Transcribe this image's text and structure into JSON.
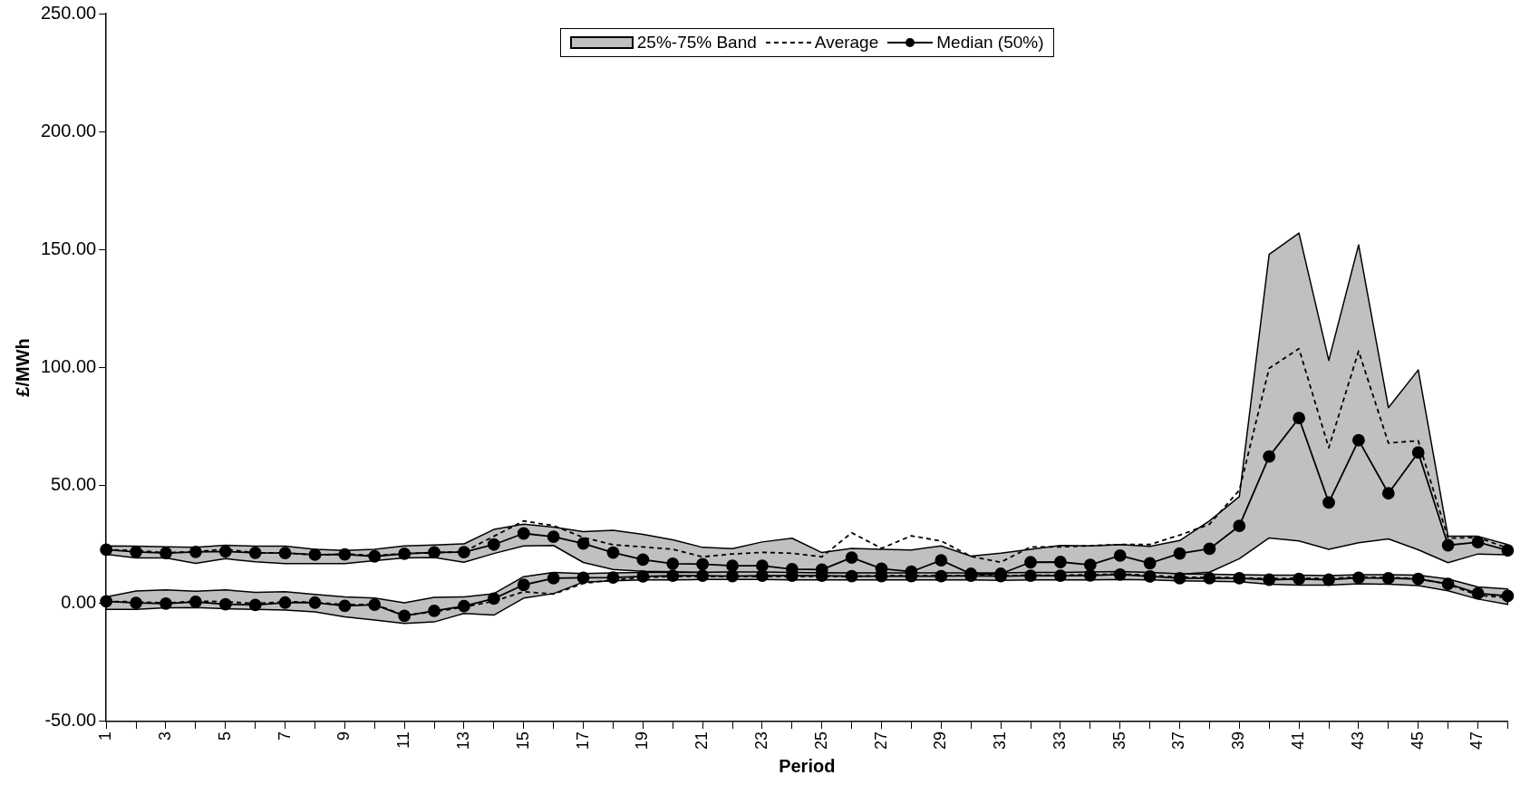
{
  "chart_data": {
    "type": "line",
    "xlabel": "Period",
    "ylabel": "£/MWh",
    "categories": [
      "1",
      null,
      "3",
      null,
      "5",
      null,
      "7",
      null,
      "9",
      null,
      "11",
      null,
      "13",
      null,
      "15",
      null,
      "17",
      null,
      "19",
      null,
      "21",
      null,
      "23",
      null,
      "25",
      null,
      "27",
      null,
      "29",
      null,
      "31",
      null,
      "33",
      null,
      "35",
      null,
      "37",
      null,
      "39",
      null,
      "41",
      null,
      "43",
      null,
      "45",
      null,
      "47",
      null
    ],
    "ylim": [
      -50,
      250
    ],
    "yticks": [
      {
        "value": -50,
        "label": "-50.00"
      },
      {
        "value": 0,
        "label": "0.00"
      },
      {
        "value": 50,
        "label": "50.00"
      },
      {
        "value": 100,
        "label": "100.00"
      },
      {
        "value": 150,
        "label": "150.00"
      },
      {
        "value": 200,
        "label": "200.00"
      },
      {
        "value": 250,
        "label": "250.00"
      }
    ],
    "grid": false,
    "legend": "top",
    "series": [
      {
        "name": "Median (50%)",
        "type": "line",
        "line_style": "solid",
        "marker": "circle",
        "color": "#000000",
        "values": [
          22.8,
          21.9,
          21.4,
          21.9,
          22.1,
          21.5,
          21.4,
          20.7,
          20.8,
          20,
          21.1,
          21.7,
          21.8,
          25,
          29.7,
          28.3,
          25.4,
          21.6,
          18.6,
          16.9,
          16.7,
          16,
          16,
          14.6,
          14.4,
          19.5,
          14.8,
          13.5,
          18.3,
          12.6,
          12.6,
          17.5,
          17.6,
          16.4,
          20.3,
          17.1,
          21.2,
          23.2,
          32.9,
          62.3,
          78.6,
          42.8,
          69.2,
          46.7,
          64,
          24.7,
          26,
          22.5
        ],
        "lower": [
          20.9,
          19.3,
          19.3,
          17,
          19,
          17.7,
          16.9,
          16.9,
          16.9,
          18.2,
          19.3,
          19.5,
          17.5,
          21.2,
          24.4,
          24.6,
          17.4,
          14.4,
          13.7,
          13.5,
          13.2,
          13.2,
          13,
          13,
          13,
          12.8,
          12.8,
          12.6,
          12.6,
          12.3,
          12,
          12.6,
          12.8,
          13,
          13.2,
          12.8,
          12.4,
          13.3,
          19,
          27.8,
          26.5,
          23,
          25.8,
          27.4,
          22.8,
          17.3,
          21,
          20.7
        ],
        "upper": [
          24.4,
          24.3,
          24,
          23.8,
          24.7,
          24.3,
          24.3,
          23,
          22.5,
          23,
          24.4,
          24.8,
          25.3,
          31.4,
          33.6,
          32.4,
          30.5,
          31,
          29.3,
          27,
          23.8,
          23.3,
          26.1,
          27.7,
          21.6,
          23.4,
          23,
          22.7,
          24.4,
          20.1,
          21.3,
          23,
          24.6,
          24.4,
          25,
          24.2,
          26.7,
          35,
          45.3,
          148,
          157,
          103,
          152,
          83,
          99,
          28.5,
          28.5,
          25
        ]
      },
      {
        "name": "Average",
        "type": "line",
        "line_style": "dashed",
        "marker": "none",
        "color": "#000000",
        "values": [
          22.8,
          22.5,
          21.5,
          22,
          23,
          21.5,
          21.5,
          20.5,
          21,
          20.3,
          21.2,
          21.5,
          22,
          28.5,
          35,
          33,
          28,
          24.9,
          24,
          23,
          19.8,
          21,
          21.7,
          21.3,
          19.8,
          30,
          23.4,
          28.7,
          26.5,
          20,
          17.5,
          24,
          24,
          24.5,
          25,
          25,
          29,
          33.6,
          48,
          99.7,
          108,
          66,
          107,
          68,
          69,
          27.7,
          28,
          23.5
        ]
      },
      {
        "type": "line",
        "line_style": "solid",
        "marker": "circle",
        "color": "#000000",
        "values": [
          0.9,
          0.3,
          0,
          0.7,
          -0.3,
          -0.6,
          0.4,
          0.4,
          -1,
          -0.5,
          -5.2,
          -3.1,
          -1.1,
          2.1,
          7.9,
          10.7,
          10.9,
          11,
          11.5,
          11.8,
          11.8,
          11.6,
          11.8,
          11.8,
          11.8,
          11.6,
          11.6,
          11.6,
          11.6,
          11.8,
          11.6,
          11.8,
          11.8,
          11.9,
          12.3,
          11.5,
          10.7,
          10.7,
          10.7,
          10.1,
          10.4,
          10.1,
          10.9,
          10.7,
          10.4,
          8.3,
          4.3,
          3.2
        ],
        "lower": [
          -2.5,
          -2.5,
          -1.8,
          -1.7,
          -2.2,
          -2.5,
          -2.8,
          -3.5,
          -5.6,
          -7,
          -8.4,
          -7.8,
          -4.2,
          -4.9,
          2.3,
          4.2,
          9.1,
          9.6,
          10,
          10,
          10.2,
          10.2,
          10.2,
          10,
          10,
          10,
          10,
          10,
          10,
          10,
          9.8,
          10,
          10,
          10,
          10.2,
          10,
          9.6,
          9.4,
          9.2,
          8.2,
          7.8,
          7.8,
          8.4,
          8.2,
          7.6,
          5.4,
          1.9,
          -0.4
        ],
        "upper": [
          2.8,
          5.3,
          5.8,
          5.2,
          5.8,
          4.7,
          5,
          3.9,
          2.8,
          2.3,
          0.3,
          2.6,
          2.8,
          4.2,
          11.4,
          13.2,
          12.7,
          13,
          13.2,
          13.2,
          13.2,
          13.4,
          13.4,
          13.2,
          13,
          13,
          13,
          13,
          13,
          13,
          13,
          13.2,
          13.2,
          13.4,
          13.6,
          13.2,
          12.6,
          12.4,
          12.2,
          12,
          12,
          11.8,
          12.2,
          12.2,
          12,
          10.4,
          7,
          6.2
        ]
      },
      {
        "type": "line",
        "line_style": "dashed",
        "marker": "none",
        "color": "#000000",
        "values": [
          0.9,
          0.8,
          0.2,
          1,
          0.8,
          0,
          0.8,
          0.5,
          -0.5,
          -0.3,
          -5,
          -3.5,
          -1.5,
          1,
          5,
          4,
          8.5,
          10,
          11,
          11.5,
          11.5,
          11.5,
          11.5,
          11.5,
          11.5,
          11.5,
          11.8,
          11.8,
          11.8,
          11.8,
          11.8,
          12,
          12,
          12.2,
          12.5,
          12,
          11.2,
          11,
          11,
          10.5,
          10.8,
          10.6,
          11.2,
          11,
          10.6,
          8.2,
          3.5,
          2.5
        ]
      }
    ],
    "annotations": [
      "25%-75% Band"
    ]
  }
}
